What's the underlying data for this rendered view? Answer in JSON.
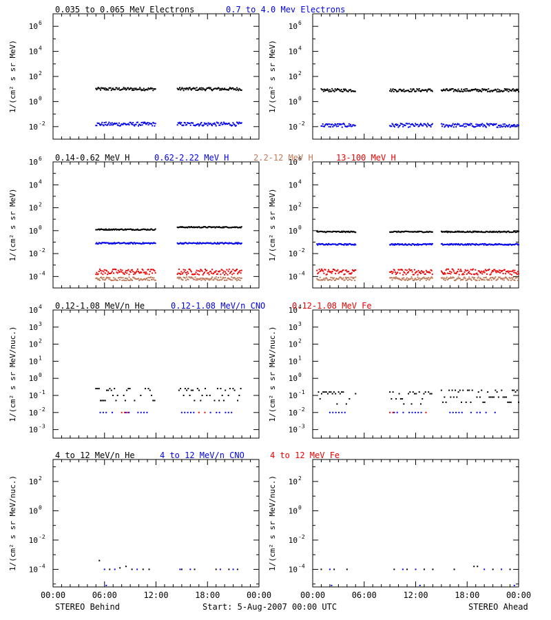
{
  "colors": {
    "black": "#000000",
    "blue": "#0000ee",
    "tan": "#c07a5a",
    "red": "#ee0000"
  },
  "legends": {
    "electrons": [
      {
        "text": "0.035 to 0.065 MeV Electrons",
        "color": "#000000"
      },
      {
        "text": "0.7 to 4.0 Mev Electrons",
        "color": "#0000ee"
      }
    ],
    "protons": [
      {
        "text": "0.14-0.62 MeV H",
        "color": "#000000"
      },
      {
        "text": "0.62-2.22 MeV H",
        "color": "#0000ee"
      },
      {
        "text": "2.2-12 MeV H",
        "color": "#c07a5a"
      },
      {
        "text": "13-100 MeV H",
        "color": "#ee0000"
      }
    ],
    "low_ions": [
      {
        "text": "0.12-1.08 MeV/n He",
        "color": "#000000"
      },
      {
        "text": "0.12-1.08 MeV/n CNO",
        "color": "#0000ee"
      },
      {
        "text": "0.12-1.08 MeV Fe",
        "color": "#ee0000"
      }
    ],
    "high_ions": [
      {
        "text": "4 to 12 MeV/n He",
        "color": "#000000"
      },
      {
        "text": "4 to 12 MeV/n CNO",
        "color": "#0000ee"
      },
      {
        "text": "4 to 12 MeV Fe",
        "color": "#ee0000"
      }
    ]
  },
  "ylabels": {
    "electrons": "1/(cm² s sr MeV)",
    "protons": "1/(cm² s sr MeV)",
    "ions": "1/(cm² s sr MeV/nuc.)"
  },
  "x_ticks": [
    "00:00",
    "06:00",
    "12:00",
    "18:00",
    "00:00"
  ],
  "footer": {
    "left": "STEREO Behind",
    "center": "Start:  5-Aug-2007 00:00 UTC",
    "right": "STEREO Ahead"
  },
  "chart_data": [
    {
      "type": "scatter",
      "row": 0,
      "spacecraft": "Behind",
      "yscale": "log",
      "ylim_exp": [
        -3,
        7
      ],
      "ytick_exp": [
        -2,
        0,
        2,
        4,
        6
      ],
      "xlim_hours": [
        0,
        24
      ],
      "series": [
        {
          "color": "#000000",
          "segments": [
            [
              5,
              12,
              1.0
            ],
            [
              14.5,
              22,
              1.0
            ]
          ],
          "jitter": 0.12
        },
        {
          "color": "#0000ee",
          "segments": [
            [
              5,
              12,
              -1.8
            ],
            [
              14.5,
              22,
              -1.8
            ]
          ],
          "jitter": 0.15
        }
      ]
    },
    {
      "type": "scatter",
      "row": 0,
      "spacecraft": "Ahead",
      "yscale": "log",
      "ylim_exp": [
        -3,
        7
      ],
      "ytick_exp": [
        -2,
        0,
        2,
        4,
        6
      ],
      "xlim_hours": [
        0,
        24
      ],
      "series": [
        {
          "color": "#000000",
          "segments": [
            [
              1,
              5,
              0.9
            ],
            [
              9,
              14,
              0.9
            ],
            [
              15,
              24,
              0.9
            ]
          ],
          "jitter": 0.12
        },
        {
          "color": "#0000ee",
          "segments": [
            [
              1,
              5,
              -1.9
            ],
            [
              9,
              14,
              -1.9
            ],
            [
              15,
              24,
              -1.9
            ]
          ],
          "jitter": 0.15
        }
      ]
    },
    {
      "type": "scatter",
      "row": 1,
      "spacecraft": "Behind",
      "yscale": "log",
      "ylim_exp": [
        -5,
        6
      ],
      "ytick_exp": [
        -4,
        -2,
        0,
        2,
        4,
        6
      ],
      "xlim_hours": [
        0,
        24
      ],
      "series": [
        {
          "color": "#000000",
          "segments": [
            [
              5,
              12,
              0.1
            ],
            [
              14.5,
              22,
              0.3
            ]
          ],
          "jitter": 0.05
        },
        {
          "color": "#0000ee",
          "segments": [
            [
              5,
              12,
              -1.1
            ],
            [
              14.5,
              22,
              -1.1
            ]
          ],
          "jitter": 0.06
        },
        {
          "color": "#ee0000",
          "segments": [
            [
              5,
              12,
              -3.6
            ],
            [
              14.5,
              22,
              -3.6
            ]
          ],
          "jitter": 0.25
        },
        {
          "color": "#c07a5a",
          "segments": [
            [
              5,
              12,
              -4.2
            ],
            [
              14.5,
              22,
              -4.2
            ]
          ],
          "jitter": 0.15
        }
      ]
    },
    {
      "type": "scatter",
      "row": 1,
      "spacecraft": "Ahead",
      "yscale": "log",
      "ylim_exp": [
        -5,
        6
      ],
      "ytick_exp": [
        -4,
        -2,
        0,
        2,
        4,
        6
      ],
      "xlim_hours": [
        0,
        24
      ],
      "series": [
        {
          "color": "#000000",
          "segments": [
            [
              0.5,
              5,
              -0.1
            ],
            [
              9,
              14,
              -0.1
            ],
            [
              15,
              24,
              -0.1
            ]
          ],
          "jitter": 0.05
        },
        {
          "color": "#0000ee",
          "segments": [
            [
              0.5,
              5,
              -1.2
            ],
            [
              9,
              14,
              -1.2
            ],
            [
              15,
              24,
              -1.2
            ]
          ],
          "jitter": 0.06
        },
        {
          "color": "#ee0000",
          "segments": [
            [
              0.5,
              5,
              -3.6
            ],
            [
              9,
              14,
              -3.6
            ],
            [
              15,
              24,
              -3.6
            ]
          ],
          "jitter": 0.25
        },
        {
          "color": "#c07a5a",
          "segments": [
            [
              0.5,
              5,
              -4.2
            ],
            [
              9,
              14,
              -4.2
            ],
            [
              15,
              24,
              -4.2
            ]
          ],
          "jitter": 0.15
        }
      ]
    },
    {
      "type": "scatter",
      "row": 2,
      "spacecraft": "Behind",
      "yscale": "log",
      "ylim_exp": [
        -3.5,
        4
      ],
      "ytick_exp": [
        -3,
        -2,
        -1,
        0,
        1,
        2,
        3,
        4
      ],
      "xlim_hours": [
        0,
        24
      ],
      "series": [
        {
          "color": "#000000",
          "segments": [
            [
              5,
              12,
              -1.0
            ],
            [
              14.5,
              22,
              -1.0
            ]
          ],
          "jitter": 0.3,
          "quant": true
        },
        {
          "color": "#0000ee",
          "segments": [
            [
              5.5,
              7,
              -2.0
            ],
            [
              8.5,
              11,
              -2.0
            ],
            [
              15,
              17,
              -2.0
            ],
            [
              18,
              21,
              -2.0
            ]
          ],
          "jitter": 0,
          "sparse": true
        },
        {
          "color": "#ee0000",
          "segments": [
            [
              8,
              9,
              -2.0
            ],
            [
              17,
              18,
              -2.0
            ]
          ],
          "jitter": 0,
          "sparse": true
        }
      ]
    },
    {
      "type": "scatter",
      "row": 2,
      "spacecraft": "Ahead",
      "yscale": "log",
      "ylim_exp": [
        -3.5,
        4
      ],
      "ytick_exp": [
        -3,
        -2,
        -1,
        0,
        1,
        2,
        3,
        4
      ],
      "xlim_hours": [
        0,
        24
      ],
      "series": [
        {
          "color": "#000000",
          "segments": [
            [
              0.5,
              5,
              -1.2
            ],
            [
              9,
              14,
              -1.2
            ],
            [
              15,
              24,
              -1.1
            ]
          ],
          "jitter": 0.25,
          "quant": true
        },
        {
          "color": "#0000ee",
          "segments": [
            [
              2,
              4,
              -2.0
            ],
            [
              9.5,
              13,
              -2.0
            ],
            [
              16,
              22,
              -2.0
            ]
          ],
          "jitter": 0,
          "sparse": true
        },
        {
          "color": "#ee0000",
          "segments": [
            [
              9,
              9.5,
              -2.0
            ],
            [
              12.5,
              13.5,
              -2.0
            ]
          ],
          "jitter": 0,
          "sparse": true
        }
      ]
    },
    {
      "type": "scatter",
      "row": 3,
      "spacecraft": "Behind",
      "yscale": "log",
      "ylim_exp": [
        -5.2,
        3.5
      ],
      "ytick_exp": [
        -4,
        -2,
        0,
        2
      ],
      "xlim_hours": [
        0,
        24
      ],
      "series": [
        {
          "color": "#000000",
          "points": [
            [
              5.4,
              -3.4
            ],
            [
              6.6,
              -4.0
            ],
            [
              7.8,
              -3.9
            ],
            [
              8.5,
              -3.8
            ],
            [
              9.2,
              -4.0
            ],
            [
              10.5,
              -4.0
            ],
            [
              11.2,
              -4.0
            ],
            [
              15,
              -4.0
            ],
            [
              16.5,
              -4.0
            ],
            [
              19,
              -4.0
            ],
            [
              20.5,
              -4.0
            ],
            [
              21.5,
              -4.0
            ]
          ]
        },
        {
          "color": "#0000ee",
          "points": [
            [
              6,
              -4.0
            ],
            [
              7.2,
              -4.0
            ],
            [
              9.8,
              -4.0
            ],
            [
              14.8,
              -4.0
            ],
            [
              16,
              -4.0
            ],
            [
              19.5,
              -4.0
            ],
            [
              21,
              -4.0
            ],
            [
              6.2,
              -5.1
            ]
          ]
        }
      ]
    },
    {
      "type": "scatter",
      "row": 3,
      "spacecraft": "Ahead",
      "yscale": "log",
      "ylim_exp": [
        -5.2,
        3.5
      ],
      "ytick_exp": [
        -4,
        -2,
        0,
        2
      ],
      "xlim_hours": [
        0,
        24
      ],
      "series": [
        {
          "color": "#000000",
          "points": [
            [
              1,
              -4.0
            ],
            [
              2.5,
              -4.0
            ],
            [
              4,
              -4.0
            ],
            [
              9.5,
              -4.0
            ],
            [
              11,
              -4.0
            ],
            [
              13,
              -4.0
            ],
            [
              14,
              -4.0
            ],
            [
              16.5,
              -4.0
            ],
            [
              18.8,
              -3.8
            ],
            [
              19.2,
              -3.8
            ],
            [
              21,
              -4.0
            ],
            [
              23,
              -4.0
            ]
          ]
        },
        {
          "color": "#0000ee",
          "points": [
            [
              2,
              -4.0
            ],
            [
              10.5,
              -4.0
            ],
            [
              12,
              -4.0
            ],
            [
              20,
              -4.0
            ],
            [
              22,
              -4.0
            ],
            [
              2.2,
              -5.1
            ],
            [
              12.5,
              -5.1
            ],
            [
              23.5,
              -5.1
            ]
          ]
        }
      ]
    }
  ]
}
